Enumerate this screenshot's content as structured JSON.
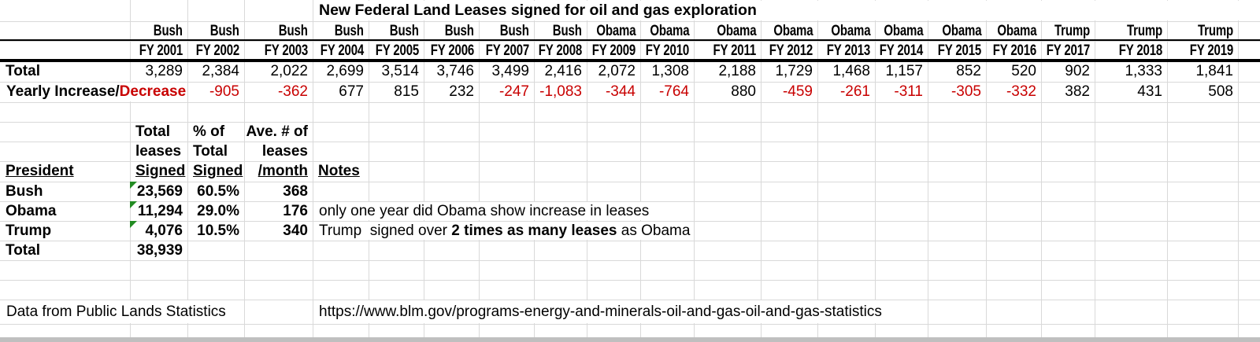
{
  "colors": {
    "negative": "#c80000",
    "triangle": "#228b22",
    "gridline": "#d9d9d9",
    "bottom_strip": "#bfbfbf"
  },
  "title": "New Federal Land Leases signed for oil and gas exploration",
  "year_table": {
    "total_label": "Total",
    "yearly_label_black": "Yearly Increase/",
    "yearly_label_red": "Decrease",
    "columns": [
      {
        "president": "Bush",
        "fy": "FY 2001",
        "total": "3,289",
        "change": ""
      },
      {
        "president": "Bush",
        "fy": "FY 2002",
        "total": "2,384",
        "change": "-905"
      },
      {
        "president": "Bush",
        "fy": "FY 2003",
        "total": "2,022",
        "change": "-362"
      },
      {
        "president": "Bush",
        "fy": "FY 2004",
        "total": "2,699",
        "change": "677"
      },
      {
        "president": "Bush",
        "fy": "FY 2005",
        "total": "3,514",
        "change": "815"
      },
      {
        "president": "Bush",
        "fy": "FY 2006",
        "total": "3,746",
        "change": "232"
      },
      {
        "president": "Bush",
        "fy": "FY 2007",
        "total": "3,499",
        "change": "-247"
      },
      {
        "president": "Bush",
        "fy": "FY 2008",
        "total": "2,416",
        "change": "-1,083"
      },
      {
        "president": "Obama",
        "fy": "FY 2009",
        "total": "2,072",
        "change": "-344"
      },
      {
        "president": "Obama",
        "fy": "FY 2010",
        "total": "1,308",
        "change": "-764"
      },
      {
        "president": "Obama",
        "fy": "FY 2011",
        "total": "2,188",
        "change": "880"
      },
      {
        "president": "Obama",
        "fy": "FY 2012",
        "total": "1,729",
        "change": "-459"
      },
      {
        "president": "Obama",
        "fy": "FY 2013",
        "total": "1,468",
        "change": "-261"
      },
      {
        "president": "Obama",
        "fy": "FY 2014",
        "total": "1,157",
        "change": "-311"
      },
      {
        "president": "Obama",
        "fy": "FY 2015",
        "total": "852",
        "change": "-305"
      },
      {
        "president": "Obama",
        "fy": "FY 2016",
        "total": "520",
        "change": "-332"
      },
      {
        "president": "Trump",
        "fy": "FY 2017",
        "total": "902",
        "change": "382"
      },
      {
        "president": "Trump",
        "fy": "FY 2018",
        "total": "1,333",
        "change": "431"
      },
      {
        "president": "Trump",
        "fy": "FY 2019",
        "total": "1,841",
        "change": "508"
      }
    ]
  },
  "summary": {
    "header": {
      "president": "President",
      "col_total_1": "Total",
      "col_total_2": "leases",
      "col_total_3": "Signed",
      "col_pct_1": "% of",
      "col_pct_2": "Total",
      "col_pct_3": "Signed",
      "col_avg_1": "Ave. # of",
      "col_avg_2": "leases",
      "col_avg_3": "/month",
      "notes": "Notes"
    },
    "rows": [
      {
        "president": "Bush",
        "total": "23,569",
        "pct": "60.5%",
        "avg": "368"
      },
      {
        "president": "Obama",
        "total": "11,294",
        "pct": "29.0%",
        "avg": "176",
        "note": "only one year did Obama show increase in leases"
      },
      {
        "president": "Trump",
        "total": "4,076",
        "pct": "10.5%",
        "avg": "340",
        "note_pre": "Trump  signed over ",
        "note_bold": "2 times as many leases",
        "note_post": " as Obama"
      }
    ],
    "total_label": "Total",
    "total_value": "38,939"
  },
  "footer": {
    "source": "Data from Public Lands Statistics",
    "url": "https://www.blm.gov/programs-energy-and-minerals-oil-and-gas-oil-and-gas-statistics"
  }
}
